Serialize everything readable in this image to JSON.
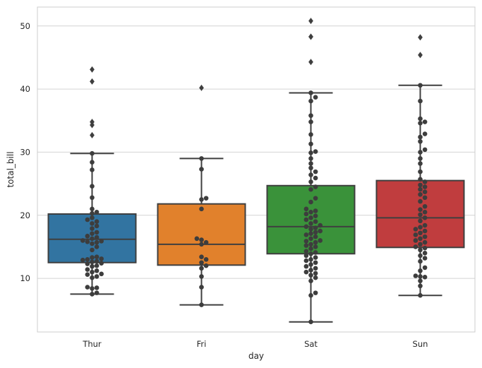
{
  "chart_data": {
    "type": "box",
    "overlay": "swarm",
    "xlabel": "day",
    "ylabel": "total_bill",
    "categories": [
      "Thur",
      "Fri",
      "Sat",
      "Sun"
    ],
    "ylim": [
      1.5,
      53
    ],
    "yticks": [
      10,
      20,
      30,
      40,
      50
    ],
    "grid": "horizontal",
    "colors": {
      "Thur": "#3274a1",
      "Fri": "#e1812c",
      "Sat": "#3a923a",
      "Sun": "#c03d3e"
    },
    "point_color": "#3d3d3d",
    "boxes": [
      {
        "category": "Thur",
        "whisker_low": 7.5,
        "q1": 12.5,
        "median": 16.2,
        "q3": 20.2,
        "whisker_high": 29.8,
        "outliers": [
          32.7,
          34.3,
          34.8,
          41.2,
          43.1
        ],
        "points": [
          7.5,
          7.7,
          8.4,
          8.5,
          8.6,
          10.1,
          10.3,
          10.6,
          10.7,
          11.0,
          11.2,
          11.4,
          11.9,
          12.0,
          12.3,
          12.4,
          12.6,
          12.7,
          12.9,
          13.0,
          13.1,
          13.3,
          13.4,
          14.5,
          15.0,
          15.5,
          15.7,
          15.8,
          15.9,
          16.0,
          16.3,
          16.5,
          16.7,
          17.1,
          17.3,
          17.9,
          18.3,
          18.7,
          19.0,
          19.3,
          19.6,
          20.3,
          20.5,
          21.0,
          22.8,
          24.6,
          27.2,
          28.4,
          29.8
        ]
      },
      {
        "category": "Fri",
        "whisker_low": 5.8,
        "q1": 12.1,
        "median": 15.4,
        "q3": 21.8,
        "whisker_high": 29.0,
        "outliers": [
          40.2
        ],
        "points": [
          5.8,
          8.6,
          10.3,
          11.6,
          12.0,
          12.5,
          13.0,
          13.4,
          15.4,
          15.7,
          16.1,
          16.3,
          21.0,
          22.5,
          22.7,
          27.3,
          29.0
        ]
      },
      {
        "category": "Sat",
        "whisker_low": 3.1,
        "q1": 13.9,
        "median": 18.2,
        "q3": 24.7,
        "whisker_high": 39.4,
        "outliers": [
          44.3,
          48.3,
          48.3,
          50.8
        ],
        "points": [
          3.1,
          7.3,
          7.7,
          9.6,
          10.1,
          10.5,
          10.8,
          11.0,
          11.3,
          11.6,
          11.9,
          12.2,
          12.5,
          12.8,
          13.0,
          13.3,
          13.6,
          13.9,
          14.1,
          14.3,
          14.7,
          15.0,
          15.2,
          15.4,
          15.7,
          15.9,
          16.0,
          16.3,
          16.6,
          16.9,
          17.1,
          17.3,
          17.5,
          17.8,
          18.0,
          18.2,
          18.4,
          18.7,
          19.0,
          19.3,
          19.6,
          19.9,
          20.2,
          20.5,
          20.7,
          21.0,
          22.1,
          22.7,
          24.1,
          24.5,
          25.3,
          25.9,
          26.4,
          26.9,
          27.5,
          28.2,
          29.0,
          29.9,
          30.1,
          31.3,
          32.8,
          34.8,
          35.8,
          38.1,
          38.7,
          39.4
        ]
      },
      {
        "category": "Sun",
        "whisker_low": 7.3,
        "q1": 14.9,
        "median": 19.6,
        "q3": 25.5,
        "whisker_high": 40.6,
        "outliers": [
          45.4,
          48.2
        ],
        "points": [
          7.3,
          8.8,
          9.6,
          10.2,
          10.3,
          10.4,
          11.2,
          11.7,
          12.7,
          13.2,
          13.6,
          14.0,
          14.5,
          14.8,
          15.0,
          15.4,
          15.7,
          16.0,
          16.3,
          16.6,
          16.9,
          17.2,
          17.5,
          17.8,
          18.1,
          18.4,
          19.1,
          19.6,
          20.1,
          20.5,
          20.9,
          21.4,
          22.2,
          22.8,
          23.3,
          23.7,
          24.1,
          24.5,
          24.8,
          25.3,
          25.7,
          26.9,
          28.2,
          29.0,
          30.0,
          30.4,
          31.7,
          32.4,
          32.9,
          34.6,
          34.8,
          35.3,
          38.1,
          40.6
        ]
      }
    ]
  }
}
